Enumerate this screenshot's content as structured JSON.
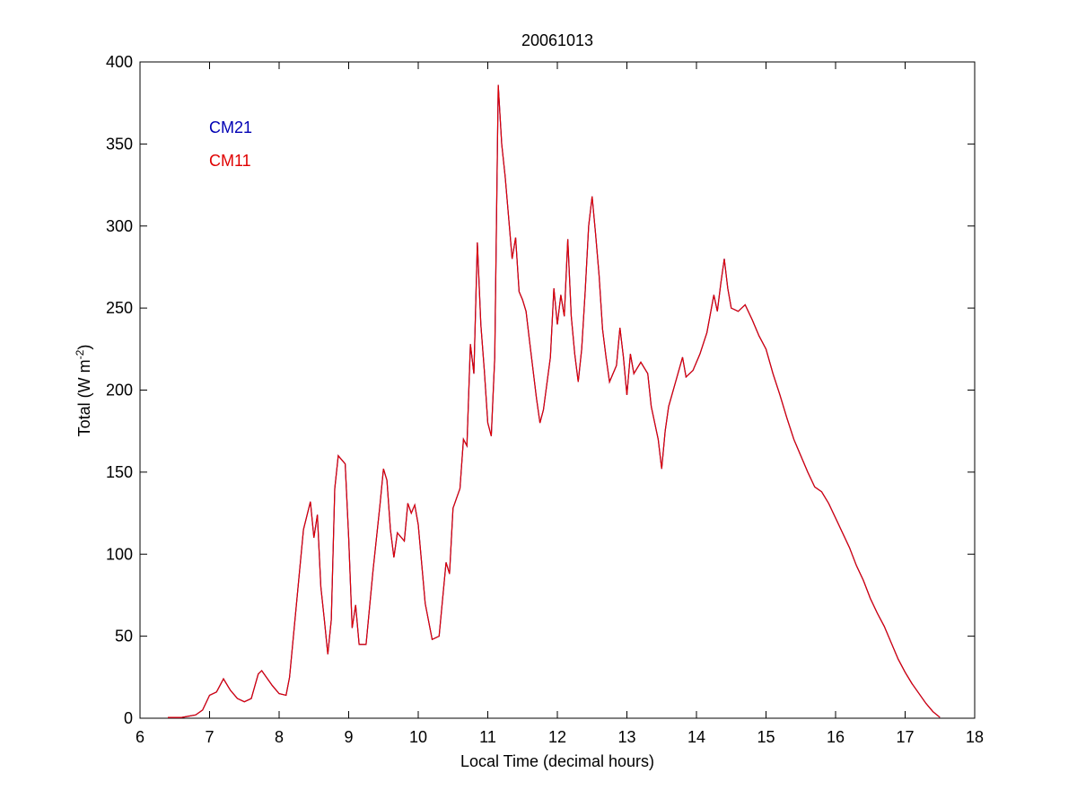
{
  "chart_data": {
    "type": "line",
    "title": "20061013",
    "xlabel": "Local Time (decimal hours)",
    "ylabel_parts": [
      "Total (W m",
      "-2",
      ")"
    ],
    "xlim": [
      6,
      18
    ],
    "xticks": [
      6,
      7,
      8,
      9,
      10,
      11,
      12,
      13,
      14,
      15,
      16,
      17,
      18
    ],
    "ylim": [
      0,
      400
    ],
    "yticks": [
      0,
      50,
      100,
      150,
      200,
      250,
      300,
      350,
      400
    ],
    "grid": false,
    "x": [
      6.4,
      6.6,
      6.8,
      6.9,
      7.0,
      7.1,
      7.2,
      7.3,
      7.4,
      7.5,
      7.6,
      7.7,
      7.75,
      7.9,
      8.0,
      8.1,
      8.15,
      8.25,
      8.35,
      8.45,
      8.5,
      8.55,
      8.6,
      8.65,
      8.7,
      8.75,
      8.8,
      8.85,
      8.95,
      9.0,
      9.05,
      9.1,
      9.15,
      9.25,
      9.35,
      9.45,
      9.5,
      9.55,
      9.6,
      9.65,
      9.7,
      9.8,
      9.85,
      9.9,
      9.95,
      10.0,
      10.1,
      10.2,
      10.3,
      10.4,
      10.45,
      10.5,
      10.6,
      10.65,
      10.7,
      10.75,
      10.8,
      10.85,
      10.9,
      10.95,
      11.0,
      11.05,
      11.1,
      11.15,
      11.2,
      11.25,
      11.3,
      11.35,
      11.4,
      11.45,
      11.5,
      11.55,
      11.6,
      11.7,
      11.75,
      11.8,
      11.9,
      11.95,
      12.0,
      12.05,
      12.1,
      12.15,
      12.2,
      12.25,
      12.3,
      12.35,
      12.4,
      12.45,
      12.5,
      12.55,
      12.6,
      12.65,
      12.7,
      12.75,
      12.85,
      12.9,
      12.95,
      13.0,
      13.05,
      13.1,
      13.2,
      13.3,
      13.35,
      13.45,
      13.5,
      13.55,
      13.6,
      13.7,
      13.8,
      13.85,
      13.95,
      14.05,
      14.15,
      14.25,
      14.3,
      14.35,
      14.4,
      14.45,
      14.5,
      14.6,
      14.7,
      14.8,
      14.9,
      15.0,
      15.1,
      15.2,
      15.3,
      15.4,
      15.5,
      15.6,
      15.7,
      15.8,
      15.9,
      16.0,
      16.1,
      16.2,
      16.3,
      16.4,
      16.5,
      16.6,
      16.7,
      16.8,
      16.9,
      17.0,
      17.1,
      17.2,
      17.3,
      17.4,
      17.5
    ],
    "series": [
      {
        "name": "CM21",
        "color": "#0000b4",
        "values": [
          0.5,
          0.5,
          2,
          5,
          14,
          16,
          24,
          17,
          12,
          10,
          12,
          27,
          29,
          20,
          15,
          14,
          25,
          70,
          115,
          132,
          110,
          124,
          80,
          60,
          39,
          60,
          140,
          160,
          155,
          110,
          55,
          69,
          45,
          45,
          90,
          130,
          152,
          145,
          115,
          98,
          113,
          108,
          131,
          125,
          130,
          118,
          70,
          48,
          50,
          95,
          88,
          128,
          140,
          170,
          166,
          228,
          210,
          290,
          240,
          212,
          180,
          172,
          220,
          386,
          350,
          330,
          305,
          280,
          293,
          260,
          255,
          248,
          230,
          195,
          180,
          188,
          220,
          262,
          240,
          258,
          245,
          292,
          245,
          222,
          205,
          225,
          260,
          300,
          318,
          295,
          270,
          237,
          220,
          205,
          215,
          238,
          220,
          197,
          222,
          210,
          217,
          210,
          190,
          170,
          152,
          175,
          190,
          205,
          220,
          208,
          212,
          222,
          235,
          258,
          248,
          265,
          280,
          262,
          250,
          248,
          252,
          243,
          233,
          225,
          210,
          197,
          183,
          170,
          160,
          150,
          141,
          138,
          131,
          122,
          113,
          104,
          93,
          84,
          73,
          64,
          56,
          46,
          36,
          28,
          21,
          15,
          9,
          4,
          0.5
        ]
      },
      {
        "name": "CM11",
        "color": "#e00000",
        "values": [
          0.5,
          0.5,
          2,
          5,
          14,
          16,
          24,
          17,
          12,
          10,
          12,
          27,
          29,
          20,
          15,
          14,
          25,
          70,
          115,
          132,
          110,
          124,
          80,
          60,
          39,
          60,
          140,
          160,
          155,
          110,
          55,
          69,
          45,
          45,
          90,
          130,
          152,
          145,
          115,
          98,
          113,
          108,
          131,
          125,
          130,
          118,
          70,
          48,
          50,
          95,
          88,
          128,
          140,
          170,
          166,
          228,
          210,
          290,
          240,
          212,
          180,
          172,
          220,
          386,
          350,
          330,
          305,
          280,
          293,
          260,
          255,
          248,
          230,
          195,
          180,
          188,
          220,
          262,
          240,
          258,
          245,
          292,
          245,
          222,
          205,
          225,
          260,
          300,
          318,
          295,
          270,
          237,
          220,
          205,
          215,
          238,
          220,
          197,
          222,
          210,
          217,
          210,
          190,
          170,
          152,
          175,
          190,
          205,
          220,
          208,
          212,
          222,
          235,
          258,
          248,
          265,
          280,
          262,
          250,
          248,
          252,
          243,
          233,
          225,
          210,
          197,
          183,
          170,
          160,
          150,
          141,
          138,
          131,
          122,
          113,
          104,
          93,
          84,
          73,
          64,
          56,
          46,
          36,
          28,
          21,
          15,
          9,
          4,
          0.5
        ]
      }
    ]
  }
}
